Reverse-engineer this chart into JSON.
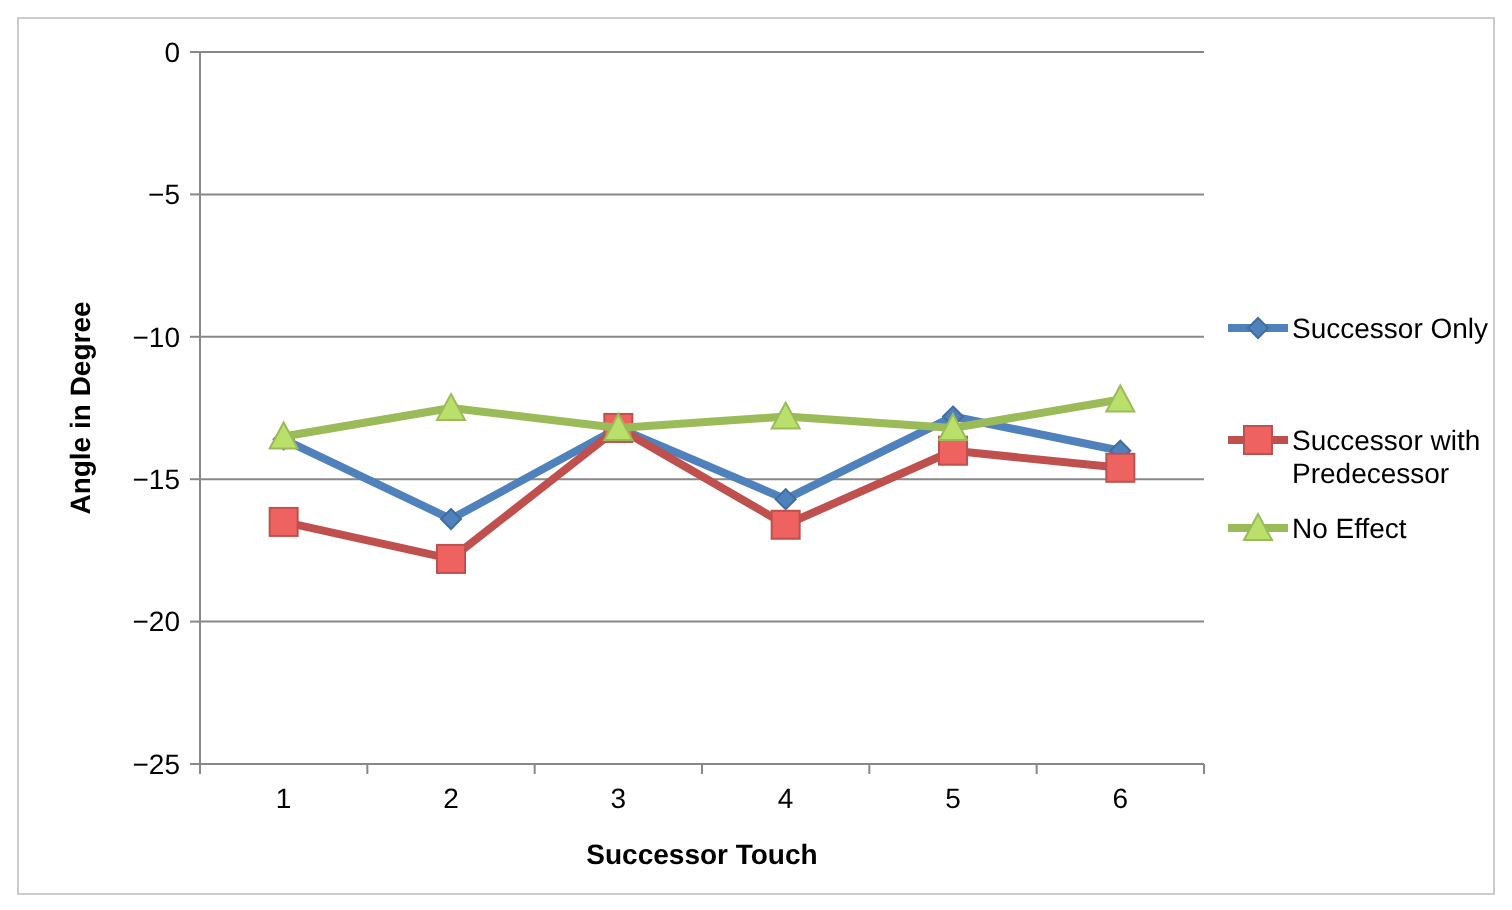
{
  "chart_data": {
    "type": "line",
    "xlabel": "Successor Touch",
    "ylabel": "Angle in Degree",
    "categories": [
      "1",
      "2",
      "3",
      "4",
      "5",
      "6"
    ],
    "series": [
      {
        "name": "Successor Only",
        "color": "#4f81bd",
        "marker": "diamond",
        "values": [
          -13.6,
          -16.4,
          -13.2,
          -15.7,
          -12.8,
          -14.0
        ]
      },
      {
        "name": "Successor with Predecessor",
        "color": "#c0504d",
        "marker": "square",
        "values": [
          -16.5,
          -17.8,
          -13.2,
          -16.6,
          -14.0,
          -14.6
        ]
      },
      {
        "name": "No Effect",
        "color": "#9bbb59",
        "marker": "triangle",
        "values": [
          -13.5,
          -12.5,
          -13.2,
          -12.8,
          -13.2,
          -12.2
        ]
      }
    ],
    "ylim": [
      -25,
      0
    ],
    "yticks": [
      0,
      -5,
      -10,
      -15,
      -20,
      -25
    ],
    "grid": "y",
    "legend": "right"
  }
}
